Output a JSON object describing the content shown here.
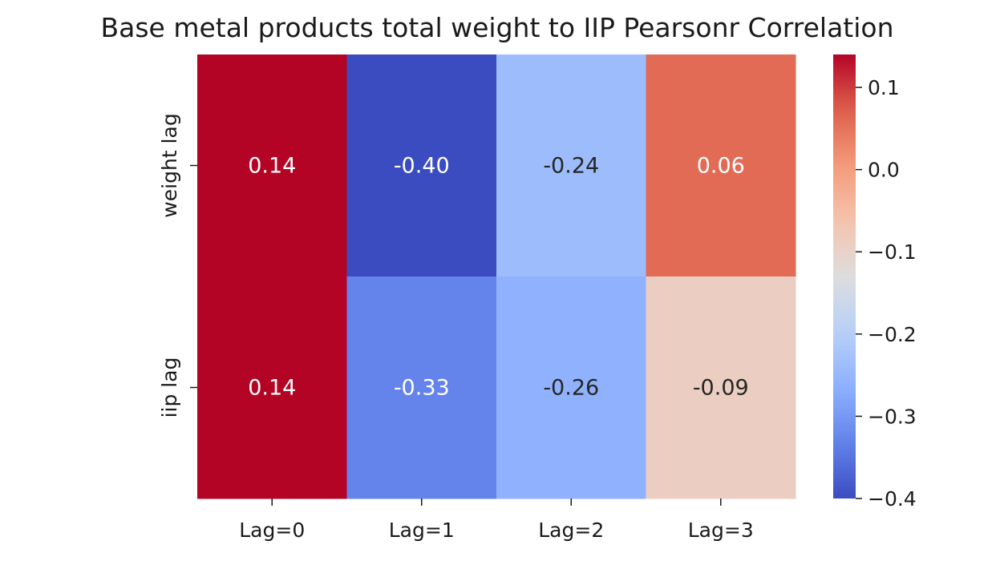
{
  "chart_data": {
    "type": "heatmap",
    "title": "Base metal products total weight to IIP Pearsonr Correlation",
    "x_labels": [
      "Lag=0",
      "Lag=1",
      "Lag=2",
      "Lag=3"
    ],
    "y_labels": [
      "weight lag",
      "iip lag"
    ],
    "values": [
      [
        0.14,
        -0.4,
        -0.24,
        0.06
      ],
      [
        0.14,
        -0.33,
        -0.26,
        -0.09
      ]
    ],
    "cell_labels": [
      [
        "0.14",
        "-0.40",
        "-0.24",
        "0.06"
      ],
      [
        "0.14",
        "-0.33",
        "-0.26",
        "-0.09"
      ]
    ],
    "colormap": "coolwarm",
    "colorbar": {
      "range": [
        -0.4,
        0.14
      ],
      "ticks": [
        0.1,
        0.0,
        -0.1,
        -0.2,
        -0.3,
        -0.4
      ],
      "tick_labels": [
        "0.1",
        "0.0",
        "−0.1",
        "−0.2",
        "−0.3",
        "−0.4"
      ]
    },
    "colors": {
      "text_light": "#ffffff",
      "text_dark": "#262626"
    }
  }
}
